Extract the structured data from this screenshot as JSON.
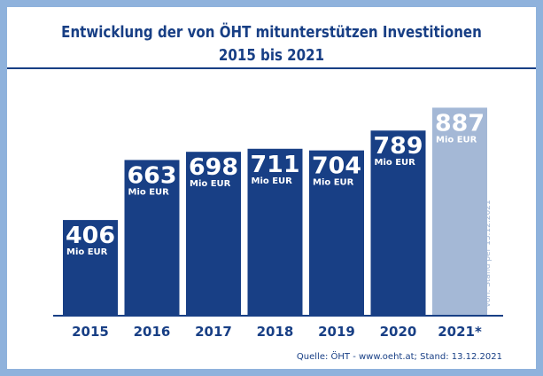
{
  "title_line1": "Entwicklung der von ÖHT mitunterstützen Investitionen",
  "title_line2": "2015 bis 2021",
  "source": "Quelle: ÖHT - www.oeht.at; Stand: 13.12.2021",
  "footnote": "*vorl. Stand per 13.12.2021",
  "colors": {
    "background": "#8fb2dc",
    "bar": "#183f85",
    "bar_provisional": "#a4b8d6",
    "text": "#183f85"
  },
  "chart_data": {
    "type": "bar",
    "categories": [
      "2015",
      "2016",
      "2017",
      "2018",
      "2019",
      "2020",
      "2021*"
    ],
    "values": [
      406,
      663,
      698,
      711,
      704,
      789,
      887
    ],
    "unit_label": "Mio EUR",
    "provisional": [
      false,
      false,
      false,
      false,
      false,
      false,
      true
    ],
    "ylim": [
      0,
      900
    ],
    "grid": false,
    "legend": "none"
  }
}
